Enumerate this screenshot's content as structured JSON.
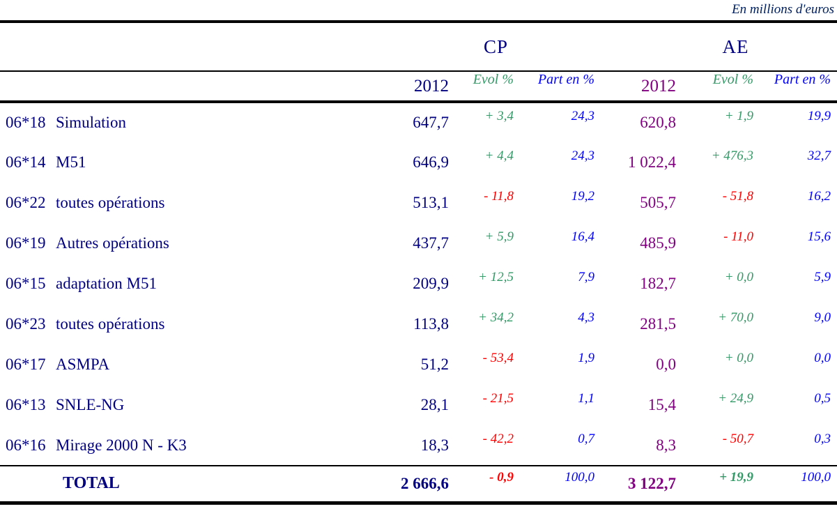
{
  "meta": {
    "units_note": "En millions d'euros"
  },
  "colors": {
    "navy": "#000080",
    "purple": "#800080",
    "royal_blue": "#0000FF",
    "positive_green": "#339966",
    "negative_red": "#FF0000",
    "note_blue": "#002060",
    "line_black": "#000000"
  },
  "table": {
    "group_headers": [
      {
        "label": "CP"
      },
      {
        "label": "AE"
      }
    ],
    "sub_headers": {
      "year": "2012",
      "evol": "Evol %",
      "part": "Part en %"
    },
    "rows": [
      {
        "code": "06*18",
        "name": "Simulation",
        "cp_2012": "647,7",
        "cp_evol": "+ 3,4",
        "cp_evol_color": "#339966",
        "cp_part": "24,3",
        "ae_2012": "620,8",
        "ae_evol": "+ 1,9",
        "ae_evol_color": "#339966",
        "ae_part": "19,9"
      },
      {
        "code": "06*14",
        "name": "M51",
        "cp_2012": "646,9",
        "cp_evol": "+ 4,4",
        "cp_evol_color": "#339966",
        "cp_part": "24,3",
        "ae_2012": "1 022,4",
        "ae_evol": "+ 476,3",
        "ae_evol_color": "#339966",
        "ae_part": "32,7"
      },
      {
        "code": "06*22",
        "name": "toutes opérations",
        "cp_2012": "513,1",
        "cp_evol": "- 11,8",
        "cp_evol_color": "#FF0000",
        "cp_part": "19,2",
        "ae_2012": "505,7",
        "ae_evol": "- 51,8",
        "ae_evol_color": "#FF0000",
        "ae_part": "16,2"
      },
      {
        "code": "06*19",
        "name": "Autres opérations",
        "cp_2012": "437,7",
        "cp_evol": "+ 5,9",
        "cp_evol_color": "#339966",
        "cp_part": "16,4",
        "ae_2012": "485,9",
        "ae_evol": "- 11,0",
        "ae_evol_color": "#FF0000",
        "ae_part": "15,6"
      },
      {
        "code": "06*15",
        "name": "adaptation M51",
        "cp_2012": "209,9",
        "cp_evol": "+ 12,5",
        "cp_evol_color": "#339966",
        "cp_part": "7,9",
        "ae_2012": "182,7",
        "ae_evol": "+ 0,0",
        "ae_evol_color": "#339966",
        "ae_part": "5,9"
      },
      {
        "code": "06*23",
        "name": "toutes opérations",
        "cp_2012": "113,8",
        "cp_evol": "+ 34,2",
        "cp_evol_color": "#339966",
        "cp_part": "4,3",
        "ae_2012": "281,5",
        "ae_evol": "+ 70,0",
        "ae_evol_color": "#339966",
        "ae_part": "9,0"
      },
      {
        "code": "06*17",
        "name": "ASMPA",
        "cp_2012": "51,2",
        "cp_evol": "- 53,4",
        "cp_evol_color": "#FF0000",
        "cp_part": "1,9",
        "ae_2012": "0,0",
        "ae_evol": "+ 0,0",
        "ae_evol_color": "#339966",
        "ae_part": "0,0"
      },
      {
        "code": "06*13",
        "name": "SNLE-NG",
        "cp_2012": "28,1",
        "cp_evol": "- 21,5",
        "cp_evol_color": "#FF0000",
        "cp_part": "1,1",
        "ae_2012": "15,4",
        "ae_evol": "+ 24,9",
        "ae_evol_color": "#339966",
        "ae_part": "0,5"
      },
      {
        "code": "06*16",
        "name": "Mirage 2000 N - K3",
        "cp_2012": "18,3",
        "cp_evol": "- 42,2",
        "cp_evol_color": "#FF0000",
        "cp_part": "0,7",
        "ae_2012": "8,3",
        "ae_evol": "- 50,7",
        "ae_evol_color": "#FF0000",
        "ae_part": "0,3"
      }
    ],
    "total": {
      "label": "TOTAL",
      "cp_2012": "2 666,6",
      "cp_evol": "- 0,9",
      "cp_evol_color": "#FF0000",
      "cp_part": "100,0",
      "ae_2012": "3 122,7",
      "ae_evol": "+ 19,9",
      "ae_evol_color": "#339966",
      "ae_part": "100,0"
    }
  }
}
